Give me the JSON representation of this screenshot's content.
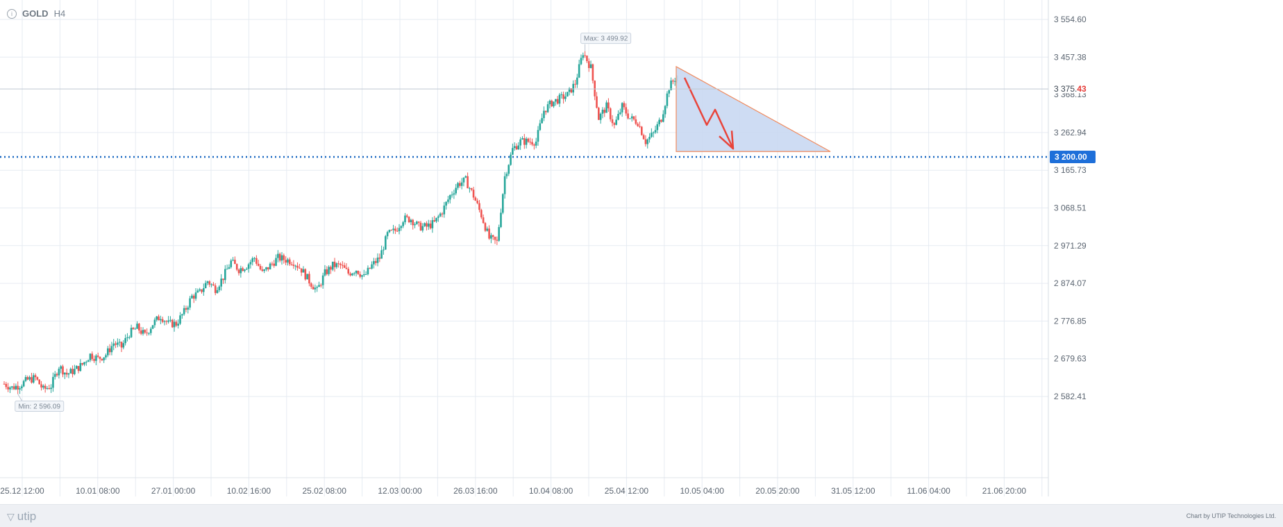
{
  "symbol": {
    "name": "GOLD",
    "timeframe": "H4",
    "info_icon": "info-icon"
  },
  "footer": {
    "brand": "utip",
    "credit": "Chart by UTIP Technologies Ltd."
  },
  "colors": {
    "up": "#26a69a",
    "down": "#ef5350",
    "level": "#1565c0",
    "grid": "#e6ebf2",
    "triangle_fill": "#c9d8f2",
    "triangle_stroke": "#f08a5d",
    "arrow": "#e8443a"
  },
  "chart_data": {
    "type": "candlestick",
    "title": "",
    "xlabel": "",
    "ylabel": "",
    "ylim": [
      2540,
      3610
    ],
    "x_tick_labels": [
      "25.12 12:00",
      "10.01 08:00",
      "27.01 00:00",
      "10.02 16:00",
      "25.02 08:00",
      "12.03 00:00",
      "26.03 16:00",
      "10.04 08:00",
      "25.04 12:00",
      "10.05 04:00",
      "20.05 20:00",
      "31.05 12:00",
      "11.06 04:00",
      "21.06 20:00"
    ],
    "y_ticks": [
      3554.6,
      3457.38,
      3262.94,
      3165.73,
      3068.51,
      2971.29,
      2874.07,
      2776.85,
      2679.63,
      2582.41
    ],
    "y_tick_labels": [
      "3 554.60",
      "3 457.38",
      "3 262.94",
      "3 165.73",
      "3 068.51",
      "2 971.29",
      "2 874.07",
      "2 776.85",
      "2 679.63",
      "2 582.41"
    ],
    "close_anchors": [
      2615,
      2605,
      2612,
      2625,
      2630,
      2600,
      2610,
      2660,
      2640,
      2650,
      2665,
      2690,
      2680,
      2690,
      2720,
      2710,
      2745,
      2760,
      2740,
      2770,
      2790,
      2770,
      2770,
      2800,
      2840,
      2850,
      2880,
      2860,
      2890,
      2930,
      2910,
      2920,
      2940,
      2900,
      2920,
      2940,
      2935,
      2930,
      2910,
      2880,
      2855,
      2900,
      2920,
      2920,
      2900,
      2910,
      2890,
      2920,
      2940,
      3000,
      3010,
      3040,
      3040,
      3020,
      3020,
      3030,
      3060,
      3100,
      3130,
      3140,
      3100,
      3050,
      2990,
      2980,
      3150,
      3220,
      3240,
      3240,
      3240,
      3320,
      3340,
      3350,
      3360,
      3390,
      3470,
      3430,
      3300,
      3330,
      3280,
      3330,
      3300,
      3290,
      3240,
      3260,
      3300,
      3380,
      3410
    ],
    "max_label": "Max: 3 499.92",
    "max_value": 3499.92,
    "min_label": "Min: 2 596.09",
    "min_value": 2596.09,
    "current_price": {
      "main": "3 375.",
      "highlight": "43",
      "value": 3375.43,
      "overlapped_label": "3 368.13"
    },
    "level": {
      "value": 3200.0,
      "label": "3 200.00",
      "style": "dotted"
    },
    "drawing": {
      "type": "triangle-with-arrow",
      "top_value": 3433,
      "base_value": 3214
    },
    "grid": true
  }
}
